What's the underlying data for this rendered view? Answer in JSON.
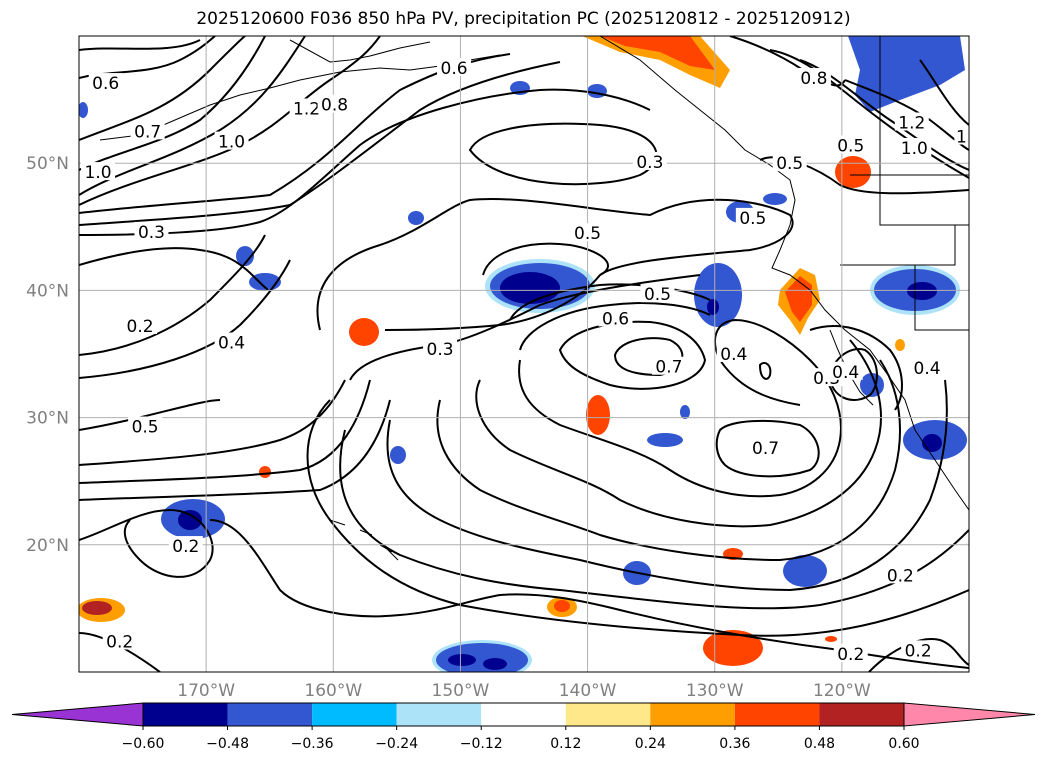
{
  "title": "2025120600 F036 850 hPa PV, precipitation PC (2025120812 - 2025120912)",
  "map": {
    "lon_range": [
      -180,
      -110
    ],
    "lat_range": [
      10,
      60
    ],
    "x_ticks": [
      {
        "lon": -170,
        "label": "170°W"
      },
      {
        "lon": -160,
        "label": "160°W"
      },
      {
        "lon": -150,
        "label": "150°W"
      },
      {
        "lon": -140,
        "label": "140°W"
      },
      {
        "lon": -130,
        "label": "130°W"
      },
      {
        "lon": -120,
        "label": "120°W"
      }
    ],
    "y_ticks": [
      {
        "lat": 20,
        "label": "20°N"
      },
      {
        "lat": 30,
        "label": "30°N"
      },
      {
        "lat": 40,
        "label": "40°N"
      },
      {
        "lat": 50,
        "label": "50°N"
      }
    ],
    "grid": true,
    "contour_labels": [
      {
        "text": "0.6",
        "lon": -177.9,
        "lat": 56.3
      },
      {
        "text": "0.7",
        "lon": -174.6,
        "lat": 52.5
      },
      {
        "text": "1.0",
        "lon": -178.5,
        "lat": 49.3
      },
      {
        "text": "1.0",
        "lon": -168.0,
        "lat": 51.7
      },
      {
        "text": "1.2",
        "lon": -162.1,
        "lat": 54.3
      },
      {
        "text": "0.8",
        "lon": -159.9,
        "lat": 54.6
      },
      {
        "text": "0.6",
        "lon": -150.5,
        "lat": 57.5
      },
      {
        "text": "0.3",
        "lon": -174.3,
        "lat": 44.6
      },
      {
        "text": "0.2",
        "lon": -175.2,
        "lat": 37.2
      },
      {
        "text": "0.4",
        "lon": -168.0,
        "lat": 35.9
      },
      {
        "text": "0.5",
        "lon": -174.8,
        "lat": 29.3
      },
      {
        "text": "0.3",
        "lon": -135.1,
        "lat": 50.1
      },
      {
        "text": "0.5",
        "lon": -140.0,
        "lat": 44.5
      },
      {
        "text": "0.5",
        "lon": -134.5,
        "lat": 39.7
      },
      {
        "text": "0.5",
        "lon": -127.0,
        "lat": 45.7
      },
      {
        "text": "0.5",
        "lon": -124.1,
        "lat": 50.0
      },
      {
        "text": "0.3",
        "lon": -151.6,
        "lat": 35.4
      },
      {
        "text": "0.6",
        "lon": -137.8,
        "lat": 37.8
      },
      {
        "text": "0.7",
        "lon": -133.6,
        "lat": 34.0
      },
      {
        "text": "0.4",
        "lon": -128.5,
        "lat": 35.0
      },
      {
        "text": "0.7",
        "lon": -126.0,
        "lat": 27.6
      },
      {
        "text": "0.8",
        "lon": -122.2,
        "lat": 56.7
      },
      {
        "text": "0.5",
        "lon": -119.3,
        "lat": 51.4
      },
      {
        "text": "1.2",
        "lon": -114.5,
        "lat": 53.2
      },
      {
        "text": "1.0",
        "lon": -114.3,
        "lat": 51.2
      },
      {
        "text": "0.2",
        "lon": -171.6,
        "lat": 19.9
      },
      {
        "text": "0.2",
        "lon": -176.8,
        "lat": 12.4
      },
      {
        "text": "0.2",
        "lon": -115.4,
        "lat": 17.6
      },
      {
        "text": "0.2",
        "lon": -119.3,
        "lat": 11.4
      },
      {
        "text": "0.2",
        "lon": -114.0,
        "lat": 11.7
      },
      {
        "text": "0.3",
        "lon": -121.2,
        "lat": 33.1
      },
      {
        "text": "0.4",
        "lon": -119.7,
        "lat": 33.6
      },
      {
        "text": "0.4",
        "lon": -113.3,
        "lat": 33.9
      },
      {
        "text": "1",
        "lon": -110.6,
        "lat": 52.1
      }
    ]
  },
  "colorbar": {
    "tick_labels": [
      "−0.60",
      "−0.48",
      "−0.36",
      "−0.24",
      "−0.12",
      "0.12",
      "0.24",
      "0.36",
      "0.48",
      "0.60"
    ],
    "colors": [
      "#9a33d3",
      "#00008f",
      "#3356d1",
      "#00bbff",
      "#ade3f9",
      "#ffffff",
      "#ffe88a",
      "#ff9e00",
      "#ff4400",
      "#b22222",
      "#ff88aa"
    ],
    "extend": "both"
  }
}
